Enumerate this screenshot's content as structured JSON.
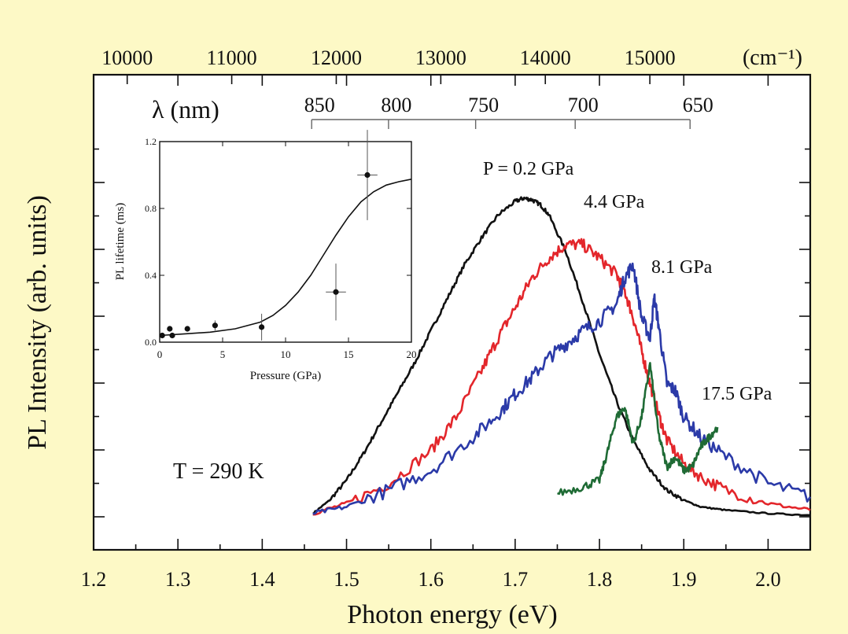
{
  "colors": {
    "background": "#fdf9c6",
    "curve_0_2GPa": "#111111",
    "curve_4_4GPa": "#e3262b",
    "curve_8_1GPa": "#2b3aa8",
    "curve_17_5GPa": "#1f6b35"
  },
  "chart_data": [
    {
      "type": "line",
      "xlabel": "Photon energy (eV)",
      "ylabel": "PL Intensity (arb. units)",
      "xlim": [
        1.2,
        2.05
      ],
      "ylim": [
        0,
        1.1
      ],
      "x_ticks": [
        "1.2",
        "1.3",
        "1.4",
        "1.5",
        "1.6",
        "1.7",
        "1.8",
        "1.9",
        "2.0"
      ],
      "top_axis": {
        "unit_label": "(cm⁻¹)",
        "ticks": [
          "10000",
          "11000",
          "12000",
          "13000",
          "14000",
          "15000"
        ]
      },
      "wavelength_axis": {
        "label": "λ (nm)",
        "ticks": [
          "850",
          "800",
          "750",
          "700",
          "650"
        ]
      },
      "annotation": "T = 290 K",
      "grid": false,
      "series": [
        {
          "name": "P = 0.2 GPa",
          "x": [
            1.46,
            1.48,
            1.5,
            1.52,
            1.54,
            1.56,
            1.58,
            1.6,
            1.62,
            1.64,
            1.66,
            1.68,
            1.7,
            1.71,
            1.72,
            1.73,
            1.74,
            1.76,
            1.78,
            1.8,
            1.82,
            1.84,
            1.86,
            1.88,
            1.9,
            1.92,
            1.95,
            2.0,
            2.05
          ],
          "y": [
            0.01,
            0.05,
            0.11,
            0.19,
            0.28,
            0.37,
            0.46,
            0.56,
            0.66,
            0.76,
            0.84,
            0.91,
            0.95,
            0.96,
            0.955,
            0.94,
            0.91,
            0.8,
            0.65,
            0.49,
            0.35,
            0.23,
            0.14,
            0.08,
            0.05,
            0.03,
            0.02,
            0.01,
            0.005
          ]
        },
        {
          "name": "4.4 GPa",
          "x": [
            1.46,
            1.5,
            1.55,
            1.6,
            1.63,
            1.66,
            1.68,
            1.7,
            1.72,
            1.74,
            1.76,
            1.78,
            1.8,
            1.82,
            1.83,
            1.84,
            1.85,
            1.86,
            1.87,
            1.88,
            1.9,
            1.92,
            1.95,
            2.0,
            2.05
          ],
          "y": [
            0.01,
            0.04,
            0.1,
            0.2,
            0.3,
            0.44,
            0.54,
            0.63,
            0.72,
            0.78,
            0.82,
            0.82,
            0.78,
            0.73,
            0.68,
            0.6,
            0.5,
            0.4,
            0.31,
            0.23,
            0.16,
            0.12,
            0.08,
            0.04,
            0.02
          ]
        },
        {
          "name": "8.1 GPa",
          "x": [
            1.46,
            1.5,
            1.55,
            1.6,
            1.65,
            1.68,
            1.7,
            1.72,
            1.74,
            1.76,
            1.78,
            1.8,
            1.82,
            1.83,
            1.84,
            1.85,
            1.86,
            1.865,
            1.87,
            1.88,
            1.89,
            1.9,
            1.92,
            1.95,
            2.0,
            2.05
          ],
          "y": [
            0.01,
            0.03,
            0.08,
            0.14,
            0.24,
            0.31,
            0.37,
            0.42,
            0.48,
            0.52,
            0.56,
            0.59,
            0.64,
            0.72,
            0.76,
            0.6,
            0.54,
            0.66,
            0.58,
            0.4,
            0.38,
            0.3,
            0.24,
            0.18,
            0.1,
            0.06
          ]
        },
        {
          "name": "17.5 GPa",
          "x": [
            1.75,
            1.78,
            1.8,
            1.81,
            1.82,
            1.83,
            1.84,
            1.85,
            1.86,
            1.87,
            1.88,
            1.89,
            1.9,
            1.91,
            1.92,
            1.93,
            1.94
          ],
          "y": [
            0.07,
            0.09,
            0.11,
            0.2,
            0.3,
            0.33,
            0.22,
            0.3,
            0.46,
            0.25,
            0.15,
            0.18,
            0.14,
            0.15,
            0.21,
            0.24,
            0.27
          ]
        }
      ]
    },
    {
      "type": "scatter",
      "xlabel": "Pressure (GPa)",
      "ylabel": "PL lifetime (ms)",
      "xlim": [
        0,
        20
      ],
      "ylim": [
        0,
        1.2
      ],
      "x_ticks": [
        "0",
        "5",
        "10",
        "15",
        "20"
      ],
      "y_ticks": [
        "0.0",
        "0.4",
        "0.8",
        "1.2"
      ],
      "points": [
        {
          "x": 0.2,
          "y": 0.04,
          "yerr": 0.01
        },
        {
          "x": 0.8,
          "y": 0.08,
          "yerr": 0.015
        },
        {
          "x": 1.0,
          "y": 0.04,
          "yerr": 0.01
        },
        {
          "x": 2.2,
          "y": 0.08,
          "yerr": 0.015
        },
        {
          "x": 4.4,
          "y": 0.1,
          "yerr": 0.03
        },
        {
          "x": 8.1,
          "y": 0.09,
          "yerr": 0.08,
          "xerr": 0.2
        },
        {
          "x": 14.0,
          "y": 0.3,
          "yerr": 0.17,
          "xerr": 0.8
        },
        {
          "x": 16.5,
          "y": 1.0,
          "yerr": 0.27,
          "xerr": 0.8
        }
      ],
      "fit": {
        "x": [
          0,
          2,
          4,
          6,
          8,
          9,
          10,
          11,
          12,
          13,
          14,
          15,
          16,
          17,
          18,
          19,
          20
        ],
        "y": [
          0.04,
          0.05,
          0.06,
          0.08,
          0.12,
          0.16,
          0.22,
          0.3,
          0.4,
          0.52,
          0.64,
          0.75,
          0.84,
          0.9,
          0.94,
          0.96,
          0.975
        ]
      }
    }
  ]
}
